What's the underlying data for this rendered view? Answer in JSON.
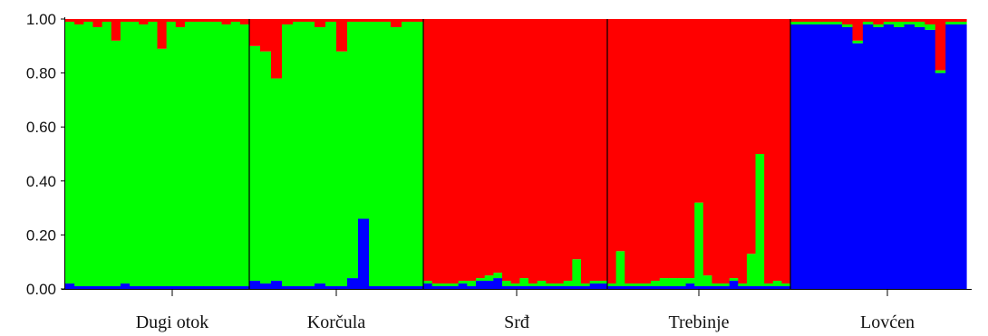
{
  "chart_data": {
    "type": "bar",
    "stacked": true,
    "ylim": [
      0,
      1
    ],
    "yticks": [
      "0.00",
      "0.20",
      "0.40",
      "0.60",
      "0.80",
      "1.00"
    ],
    "grid": false,
    "legend": "none",
    "series_colors": {
      "blue": "#0000ff",
      "green": "#00ff00",
      "red": "#ff0000"
    },
    "populations": [
      {
        "name": "Dugi otok",
        "individuals": [
          {
            "blue": 0.02,
            "green": 0.97,
            "red": 0.01
          },
          {
            "blue": 0.01,
            "green": 0.97,
            "red": 0.02
          },
          {
            "blue": 0.01,
            "green": 0.98,
            "red": 0.01
          },
          {
            "blue": 0.01,
            "green": 0.96,
            "red": 0.03
          },
          {
            "blue": 0.01,
            "green": 0.98,
            "red": 0.01
          },
          {
            "blue": 0.01,
            "green": 0.91,
            "red": 0.08
          },
          {
            "blue": 0.02,
            "green": 0.97,
            "red": 0.01
          },
          {
            "blue": 0.01,
            "green": 0.98,
            "red": 0.01
          },
          {
            "blue": 0.01,
            "green": 0.97,
            "red": 0.02
          },
          {
            "blue": 0.01,
            "green": 0.98,
            "red": 0.01
          },
          {
            "blue": 0.01,
            "green": 0.88,
            "red": 0.11
          },
          {
            "blue": 0.01,
            "green": 0.98,
            "red": 0.01
          },
          {
            "blue": 0.01,
            "green": 0.96,
            "red": 0.03
          },
          {
            "blue": 0.01,
            "green": 0.98,
            "red": 0.01
          },
          {
            "blue": 0.01,
            "green": 0.98,
            "red": 0.01
          },
          {
            "blue": 0.01,
            "green": 0.98,
            "red": 0.01
          },
          {
            "blue": 0.01,
            "green": 0.98,
            "red": 0.01
          },
          {
            "blue": 0.01,
            "green": 0.97,
            "red": 0.02
          },
          {
            "blue": 0.01,
            "green": 0.98,
            "red": 0.01
          },
          {
            "blue": 0.01,
            "green": 0.97,
            "red": 0.02
          }
        ]
      },
      {
        "name": "Korčula",
        "individuals": [
          {
            "blue": 0.03,
            "green": 0.87,
            "red": 0.1
          },
          {
            "blue": 0.02,
            "green": 0.86,
            "red": 0.12
          },
          {
            "blue": 0.03,
            "green": 0.75,
            "red": 0.22
          },
          {
            "blue": 0.01,
            "green": 0.97,
            "red": 0.02
          },
          {
            "blue": 0.01,
            "green": 0.98,
            "red": 0.01
          },
          {
            "blue": 0.01,
            "green": 0.98,
            "red": 0.01
          },
          {
            "blue": 0.02,
            "green": 0.95,
            "red": 0.03
          },
          {
            "blue": 0.01,
            "green": 0.98,
            "red": 0.01
          },
          {
            "blue": 0.01,
            "green": 0.87,
            "red": 0.12
          },
          {
            "blue": 0.04,
            "green": 0.95,
            "red": 0.01
          },
          {
            "blue": 0.26,
            "green": 0.73,
            "red": 0.01
          },
          {
            "blue": 0.01,
            "green": 0.98,
            "red": 0.01
          },
          {
            "blue": 0.01,
            "green": 0.98,
            "red": 0.01
          },
          {
            "blue": 0.01,
            "green": 0.96,
            "red": 0.03
          },
          {
            "blue": 0.01,
            "green": 0.98,
            "red": 0.01
          },
          {
            "blue": 0.01,
            "green": 0.98,
            "red": 0.01
          }
        ]
      },
      {
        "name": "Srđ",
        "individuals": [
          {
            "blue": 0.02,
            "green": 0.01,
            "red": 0.97
          },
          {
            "blue": 0.01,
            "green": 0.01,
            "red": 0.98
          },
          {
            "blue": 0.01,
            "green": 0.01,
            "red": 0.98
          },
          {
            "blue": 0.01,
            "green": 0.01,
            "red": 0.98
          },
          {
            "blue": 0.02,
            "green": 0.01,
            "red": 0.97
          },
          {
            "blue": 0.01,
            "green": 0.02,
            "red": 0.97
          },
          {
            "blue": 0.03,
            "green": 0.01,
            "red": 0.96
          },
          {
            "blue": 0.03,
            "green": 0.02,
            "red": 0.95
          },
          {
            "blue": 0.04,
            "green": 0.02,
            "red": 0.94
          },
          {
            "blue": 0.01,
            "green": 0.02,
            "red": 0.97
          },
          {
            "blue": 0.01,
            "green": 0.01,
            "red": 0.98
          },
          {
            "blue": 0.01,
            "green": 0.03,
            "red": 0.96
          },
          {
            "blue": 0.01,
            "green": 0.01,
            "red": 0.98
          },
          {
            "blue": 0.01,
            "green": 0.02,
            "red": 0.97
          },
          {
            "blue": 0.01,
            "green": 0.01,
            "red": 0.98
          },
          {
            "blue": 0.01,
            "green": 0.01,
            "red": 0.98
          },
          {
            "blue": 0.01,
            "green": 0.02,
            "red": 0.97
          },
          {
            "blue": 0.01,
            "green": 0.1,
            "red": 0.89
          },
          {
            "blue": 0.01,
            "green": 0.01,
            "red": 0.98
          },
          {
            "blue": 0.02,
            "green": 0.01,
            "red": 0.97
          },
          {
            "blue": 0.02,
            "green": 0.01,
            "red": 0.97
          }
        ]
      },
      {
        "name": "Trebinje",
        "individuals": [
          {
            "blue": 0.01,
            "green": 0.01,
            "red": 0.98
          },
          {
            "blue": 0.01,
            "green": 0.13,
            "red": 0.86
          },
          {
            "blue": 0.01,
            "green": 0.01,
            "red": 0.98
          },
          {
            "blue": 0.01,
            "green": 0.01,
            "red": 0.98
          },
          {
            "blue": 0.01,
            "green": 0.01,
            "red": 0.98
          },
          {
            "blue": 0.01,
            "green": 0.02,
            "red": 0.97
          },
          {
            "blue": 0.01,
            "green": 0.03,
            "red": 0.96
          },
          {
            "blue": 0.01,
            "green": 0.03,
            "red": 0.96
          },
          {
            "blue": 0.01,
            "green": 0.03,
            "red": 0.96
          },
          {
            "blue": 0.02,
            "green": 0.02,
            "red": 0.96
          },
          {
            "blue": 0.01,
            "green": 0.31,
            "red": 0.68
          },
          {
            "blue": 0.01,
            "green": 0.04,
            "red": 0.95
          },
          {
            "blue": 0.01,
            "green": 0.01,
            "red": 0.98
          },
          {
            "blue": 0.01,
            "green": 0.01,
            "red": 0.98
          },
          {
            "blue": 0.03,
            "green": 0.01,
            "red": 0.96
          },
          {
            "blue": 0.01,
            "green": 0.01,
            "red": 0.98
          },
          {
            "blue": 0.01,
            "green": 0.12,
            "red": 0.87
          },
          {
            "blue": 0.01,
            "green": 0.49,
            "red": 0.5
          },
          {
            "blue": 0.01,
            "green": 0.01,
            "red": 0.98
          },
          {
            "blue": 0.01,
            "green": 0.02,
            "red": 0.97
          },
          {
            "blue": 0.01,
            "green": 0.01,
            "red": 0.98
          }
        ]
      },
      {
        "name": "Lovćen",
        "individuals": [
          {
            "blue": 0.98,
            "green": 0.01,
            "red": 0.01
          },
          {
            "blue": 0.98,
            "green": 0.01,
            "red": 0.01
          },
          {
            "blue": 0.98,
            "green": 0.01,
            "red": 0.01
          },
          {
            "blue": 0.98,
            "green": 0.01,
            "red": 0.01
          },
          {
            "blue": 0.98,
            "green": 0.01,
            "red": 0.01
          },
          {
            "blue": 0.97,
            "green": 0.01,
            "red": 0.02
          },
          {
            "blue": 0.91,
            "green": 0.01,
            "red": 0.08
          },
          {
            "blue": 0.98,
            "green": 0.01,
            "red": 0.01
          },
          {
            "blue": 0.97,
            "green": 0.01,
            "red": 0.02
          },
          {
            "blue": 0.98,
            "green": 0.01,
            "red": 0.01
          },
          {
            "blue": 0.97,
            "green": 0.02,
            "red": 0.01
          },
          {
            "blue": 0.98,
            "green": 0.01,
            "red": 0.01
          },
          {
            "blue": 0.97,
            "green": 0.02,
            "red": 0.01
          },
          {
            "blue": 0.96,
            "green": 0.02,
            "red": 0.02
          },
          {
            "blue": 0.8,
            "green": 0.01,
            "red": 0.19
          },
          {
            "blue": 0.98,
            "green": 0.01,
            "red": 0.01
          },
          {
            "blue": 0.98,
            "green": 0.01,
            "red": 0.01
          }
        ]
      }
    ]
  }
}
